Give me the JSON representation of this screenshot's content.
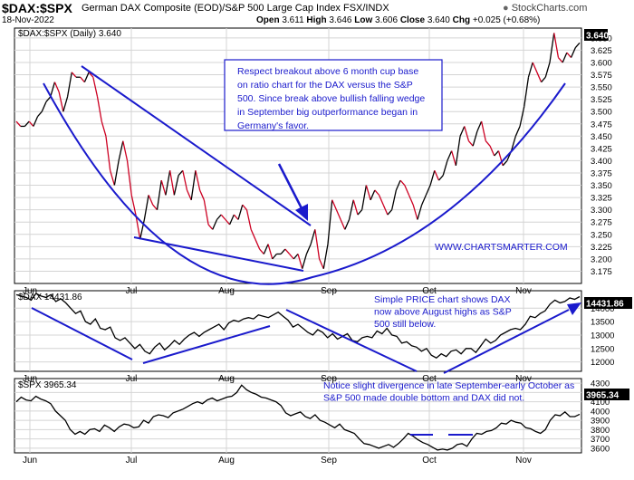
{
  "header": {
    "symbol": "$DAX:$SPX",
    "description": "German DAX Composite (EOD)/S&P 500 Large Cap Index FSX/INDX",
    "date": "18-Nov-2022",
    "open_label": "Open",
    "open": "3.611",
    "high_label": "High",
    "high": "3.646",
    "low_label": "Low",
    "low": "3.606",
    "close_label": "Close",
    "close": "3.640",
    "chg_label": "Chg",
    "chg": "+0.025 (+0.68%)",
    "brand_icon": "stockcharts-logo-icon",
    "brand": "StockCharts.com"
  },
  "x_axis_labels": [
    "Jun",
    "Jul",
    "Aug",
    "Sep",
    "Oct",
    "Nov"
  ],
  "chart_data": [
    {
      "type": "line",
      "legend": "$DAX:$SPX (Daily) 3.640",
      "last_value_label": "3.640",
      "ylim": [
        3.15,
        3.67
      ],
      "y_ticks": [
        "3.650",
        "3.625",
        "3.600",
        "3.575",
        "3.550",
        "3.525",
        "3.500",
        "3.475",
        "3.450",
        "3.425",
        "3.400",
        "3.375",
        "3.350",
        "3.325",
        "3.300",
        "3.275",
        "3.250",
        "3.225",
        "3.200",
        "3.175"
      ],
      "months": [
        "Jun",
        "Jul",
        "Aug",
        "Sep",
        "Oct",
        "Nov"
      ],
      "colors": {
        "up": "#000000",
        "down": "#cc0022",
        "trendline": "#1a1acc"
      },
      "series": [
        {
          "values": [
            3.48,
            3.47,
            3.47,
            3.48,
            3.47,
            3.49,
            3.5,
            3.52,
            3.53,
            3.56,
            3.54,
            3.5,
            3.53,
            3.58,
            3.57,
            3.57,
            3.56,
            3.58,
            3.57,
            3.53,
            3.48,
            3.45,
            3.38,
            3.35,
            3.4,
            3.44,
            3.4,
            3.33,
            3.29,
            3.24,
            3.28,
            3.33,
            3.31,
            3.3,
            3.36,
            3.33,
            3.38,
            3.33,
            3.37,
            3.38,
            3.34,
            3.32,
            3.38,
            3.34,
            3.32,
            3.27,
            3.26,
            3.28,
            3.29,
            3.28,
            3.27,
            3.29,
            3.28,
            3.31,
            3.3,
            3.26,
            3.24,
            3.22,
            3.21,
            3.23,
            3.2,
            3.21,
            3.21,
            3.22,
            3.21,
            3.2,
            3.21,
            3.18,
            3.21,
            3.23,
            3.26,
            3.2,
            3.18,
            3.23,
            3.32,
            3.3,
            3.28,
            3.26,
            3.28,
            3.32,
            3.29,
            3.3,
            3.35,
            3.32,
            3.34,
            3.33,
            3.31,
            3.29,
            3.3,
            3.34,
            3.36,
            3.35,
            3.33,
            3.31,
            3.28,
            3.31,
            3.33,
            3.35,
            3.38,
            3.36,
            3.37,
            3.4,
            3.42,
            3.39,
            3.45,
            3.47,
            3.44,
            3.43,
            3.46,
            3.48,
            3.44,
            3.43,
            3.41,
            3.42,
            3.39,
            3.4,
            3.42,
            3.45,
            3.47,
            3.51,
            3.57,
            3.6,
            3.58,
            3.56,
            3.57,
            3.6,
            3.66,
            3.61,
            3.6,
            3.62,
            3.61,
            3.63,
            3.64
          ]
        }
      ],
      "annotations": [
        "Respect breakout above 6 month cup base on ratio chart for the DAX versus the S&P 500. Since break above bullish falling wedge in September big outperformance began in Germany's favor.",
        "WWW.CHARTSMARTER.COM"
      ]
    },
    {
      "type": "line",
      "legend": "$DAX 14431.86",
      "last_value_label": "14431.86",
      "ylim": [
        11650,
        14650
      ],
      "y_ticks": [
        "14000",
        "13500",
        "13000",
        "12500",
        "12000"
      ],
      "colors": {
        "line": "#000000",
        "trendline": "#1a1acc"
      },
      "series": [
        {
          "values": [
            14500,
            14450,
            14400,
            14300,
            14550,
            14450,
            14400,
            14500,
            14250,
            14350,
            14200,
            14000,
            13800,
            13900,
            13500,
            13400,
            13600,
            13250,
            13200,
            13300,
            12900,
            12800,
            12900,
            12700,
            12500,
            12650,
            12400,
            12300,
            12550,
            12700,
            12450,
            12600,
            12800,
            12650,
            12850,
            13000,
            13100,
            12950,
            13100,
            13200,
            13300,
            13400,
            13200,
            13450,
            13550,
            13500,
            13600,
            13650,
            13600,
            13750,
            13700,
            13650,
            13750,
            13850,
            13700,
            13550,
            13300,
            13400,
            13250,
            13100,
            13000,
            13200,
            13100,
            12900,
            13050,
            12850,
            12950,
            13050,
            12800,
            12750,
            12900,
            12950,
            12900,
            13150,
            13050,
            13250,
            13000,
            12950,
            12700,
            12750,
            12600,
            12550,
            12400,
            12500,
            12250,
            12150,
            12300,
            12200,
            12400,
            12450,
            12300,
            12500,
            12500,
            12350,
            12600,
            12850,
            12700,
            12800,
            13000,
            13100,
            13200,
            13250,
            13200,
            13400,
            13700,
            13650,
            13800,
            13900,
            14150,
            14300,
            14200,
            14250,
            14380,
            14330,
            14431.86
          ]
        }
      ],
      "annotations": [
        "Simple PRICE chart shows DAX now above August highs as S&P 500 still below."
      ]
    },
    {
      "type": "line",
      "legend": "$SPX 3965.34",
      "last_value_label": "3965.34",
      "ylim": [
        3550,
        4350
      ],
      "y_ticks": [
        "4300",
        "4200",
        "4100",
        "4000",
        "3900",
        "3800",
        "3700",
        "3600"
      ],
      "colors": {
        "line": "#000000",
        "marker": "#1a1acc"
      },
      "series": [
        {
          "values": [
            4100,
            4150,
            4120,
            4110,
            4160,
            4130,
            4110,
            4080,
            4000,
            3950,
            3900,
            3800,
            3750,
            3780,
            3750,
            3800,
            3810,
            3780,
            3850,
            3820,
            3780,
            3830,
            3860,
            3850,
            3820,
            3830,
            3900,
            3870,
            3940,
            3960,
            3950,
            3930,
            3980,
            4000,
            4020,
            4050,
            4080,
            4100,
            4080,
            4120,
            4140,
            4110,
            4130,
            4150,
            4160,
            4200,
            4280,
            4230,
            4200,
            4180,
            4150,
            4140,
            4120,
            4100,
            4060,
            3980,
            3950,
            3970,
            3990,
            3940,
            3920,
            3960,
            3900,
            3880,
            3850,
            3820,
            3860,
            3800,
            3780,
            3760,
            3700,
            3650,
            3640,
            3620,
            3600,
            3620,
            3640,
            3610,
            3650,
            3700,
            3760,
            3730,
            3690,
            3660,
            3640,
            3610,
            3580,
            3590,
            3580,
            3600,
            3640,
            3650,
            3620,
            3700,
            3760,
            3750,
            3780,
            3790,
            3820,
            3870,
            3860,
            3900,
            3880,
            3870,
            3820,
            3810,
            3780,
            3760,
            3800,
            3900,
            3960,
            3950,
            3990,
            3940,
            3940,
            3965.34
          ]
        }
      ],
      "annotations": [
        "Notice slight divergence in late September-early October as S&P 500 made double bottom and DAX did not."
      ]
    }
  ]
}
